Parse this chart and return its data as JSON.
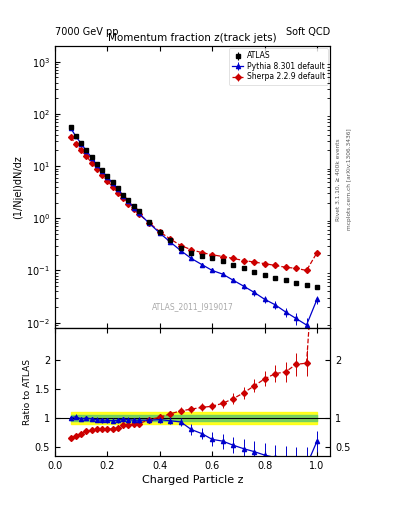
{
  "title": "Momentum fraction z(track jets)",
  "top_left_label": "7000 GeV pp",
  "top_right_label": "Soft QCD",
  "watermark": "ATLAS_2011_I919017",
  "ylabel_main": "(1/Njel)dN/dz",
  "ylabel_ratio": "Ratio to ATLAS",
  "xlabel": "Charged Particle z",
  "right_label1": "Rivet 3.1.10, ≥ 400k events",
  "right_label2": "mcplots.cern.ch [arXiv:1306.3436]",
  "ylim_main": [
    0.008,
    2000
  ],
  "ylim_ratio": [
    0.35,
    2.55
  ],
  "xlim": [
    0.0,
    1.05
  ],
  "atlas_x": [
    0.06,
    0.08,
    0.1,
    0.12,
    0.14,
    0.16,
    0.18,
    0.2,
    0.22,
    0.24,
    0.26,
    0.28,
    0.3,
    0.32,
    0.36,
    0.4,
    0.44,
    0.48,
    0.52,
    0.56,
    0.6,
    0.64,
    0.68,
    0.72,
    0.76,
    0.8,
    0.84,
    0.88,
    0.92,
    0.96,
    1.0
  ],
  "atlas_y": [
    55,
    38,
    28,
    20,
    15,
    11,
    8.5,
    6.5,
    5.0,
    3.8,
    2.8,
    2.2,
    1.7,
    1.35,
    0.85,
    0.55,
    0.38,
    0.27,
    0.22,
    0.19,
    0.17,
    0.15,
    0.13,
    0.11,
    0.095,
    0.082,
    0.072,
    0.065,
    0.058,
    0.052,
    0.048
  ],
  "atlas_yerr": [
    3,
    2,
    1.5,
    1.0,
    0.7,
    0.5,
    0.35,
    0.25,
    0.2,
    0.15,
    0.1,
    0.08,
    0.06,
    0.05,
    0.03,
    0.02,
    0.015,
    0.012,
    0.01,
    0.009,
    0.008,
    0.007,
    0.007,
    0.006,
    0.006,
    0.005,
    0.005,
    0.005,
    0.004,
    0.004,
    0.004
  ],
  "pythia_x": [
    0.06,
    0.08,
    0.1,
    0.12,
    0.14,
    0.16,
    0.18,
    0.2,
    0.22,
    0.24,
    0.26,
    0.28,
    0.3,
    0.32,
    0.36,
    0.4,
    0.44,
    0.48,
    0.52,
    0.56,
    0.6,
    0.64,
    0.68,
    0.72,
    0.76,
    0.8,
    0.84,
    0.88,
    0.92,
    0.96,
    1.0
  ],
  "pythia_y": [
    53,
    37,
    27,
    19.5,
    14.5,
    10.5,
    8.0,
    6.2,
    4.7,
    3.6,
    2.7,
    2.1,
    1.6,
    1.25,
    0.8,
    0.52,
    0.35,
    0.24,
    0.17,
    0.13,
    0.1,
    0.085,
    0.065,
    0.05,
    0.038,
    0.028,
    0.022,
    0.016,
    0.012,
    0.009,
    0.028
  ],
  "pythia_yerr": [
    2,
    1.5,
    1,
    0.8,
    0.5,
    0.4,
    0.3,
    0.2,
    0.15,
    0.12,
    0.1,
    0.08,
    0.06,
    0.05,
    0.03,
    0.02,
    0.015,
    0.012,
    0.01,
    0.009,
    0.008,
    0.007,
    0.006,
    0.005,
    0.005,
    0.004,
    0.004,
    0.003,
    0.003,
    0.003,
    0.005
  ],
  "sherpa_x": [
    0.06,
    0.08,
    0.1,
    0.12,
    0.14,
    0.16,
    0.18,
    0.2,
    0.22,
    0.24,
    0.26,
    0.28,
    0.3,
    0.32,
    0.36,
    0.4,
    0.44,
    0.48,
    0.52,
    0.56,
    0.6,
    0.64,
    0.68,
    0.72,
    0.76,
    0.8,
    0.84,
    0.88,
    0.92,
    0.96,
    1.0
  ],
  "sherpa_y": [
    36,
    26,
    20,
    15.5,
    11.5,
    8.8,
    6.8,
    5.2,
    4.0,
    3.1,
    2.4,
    1.9,
    1.5,
    1.2,
    0.82,
    0.55,
    0.4,
    0.3,
    0.25,
    0.22,
    0.2,
    0.185,
    0.17,
    0.155,
    0.145,
    0.135,
    0.125,
    0.115,
    0.11,
    0.1,
    0.22
  ],
  "sherpa_yerr": [
    2,
    1.5,
    1,
    0.7,
    0.5,
    0.4,
    0.3,
    0.2,
    0.15,
    0.1,
    0.08,
    0.07,
    0.06,
    0.05,
    0.03,
    0.02,
    0.015,
    0.012,
    0.01,
    0.009,
    0.009,
    0.008,
    0.008,
    0.007,
    0.007,
    0.007,
    0.006,
    0.006,
    0.006,
    0.006,
    0.015
  ],
  "atlas_color": "#000000",
  "pythia_color": "#0000cc",
  "sherpa_color": "#cc0000",
  "band_green": 0.05,
  "band_yellow": 0.1,
  "pythia_ratio": [
    1.0,
    1.02,
    0.98,
    1.0,
    0.98,
    0.97,
    0.96,
    0.96,
    0.95,
    0.96,
    0.98,
    0.97,
    0.96,
    0.96,
    0.96,
    0.97,
    0.95,
    0.93,
    0.8,
    0.73,
    0.63,
    0.6,
    0.53,
    0.47,
    0.42,
    0.36,
    0.32,
    0.26,
    0.22,
    0.18,
    0.6
  ],
  "pythia_ratio_err": [
    0.04,
    0.04,
    0.04,
    0.04,
    0.04,
    0.04,
    0.04,
    0.04,
    0.04,
    0.04,
    0.04,
    0.04,
    0.04,
    0.05,
    0.05,
    0.05,
    0.06,
    0.07,
    0.09,
    0.1,
    0.12,
    0.13,
    0.14,
    0.16,
    0.18,
    0.2,
    0.22,
    0.25,
    0.28,
    0.32,
    0.18
  ],
  "sherpa_ratio": [
    0.65,
    0.69,
    0.72,
    0.77,
    0.79,
    0.81,
    0.81,
    0.81,
    0.81,
    0.83,
    0.87,
    0.87,
    0.89,
    0.9,
    0.97,
    1.01,
    1.07,
    1.12,
    1.15,
    1.18,
    1.2,
    1.25,
    1.33,
    1.43,
    1.55,
    1.67,
    1.76,
    1.79,
    1.92,
    1.94,
    4.6
  ],
  "sherpa_ratio_err": [
    0.04,
    0.04,
    0.04,
    0.04,
    0.04,
    0.04,
    0.04,
    0.04,
    0.04,
    0.04,
    0.04,
    0.04,
    0.04,
    0.04,
    0.04,
    0.05,
    0.05,
    0.06,
    0.06,
    0.07,
    0.07,
    0.08,
    0.09,
    0.1,
    0.11,
    0.13,
    0.15,
    0.17,
    0.2,
    0.22,
    0.6
  ]
}
